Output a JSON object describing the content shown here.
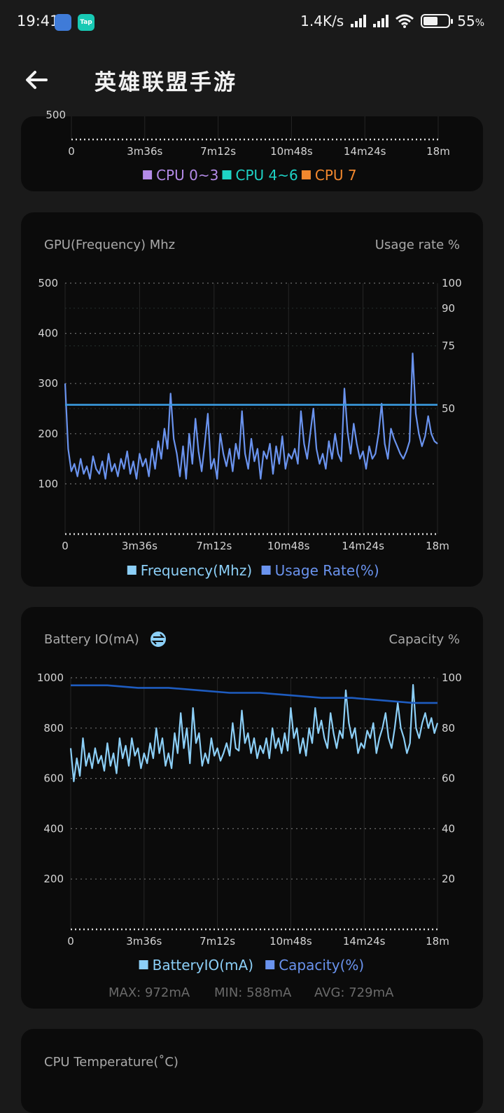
{
  "status_bar": {
    "time": "19:41",
    "net_speed": "1.4K/s",
    "battery_percent": "55",
    "battery_unit": "%",
    "battery_level": 0.55,
    "app_icon_2_label": "Tap"
  },
  "header": {
    "title": "英雄联盟手游",
    "back_icon": "arrow-left-icon"
  },
  "cpu_card": {
    "partial_tick": "500",
    "legend": [
      {
        "label": "CPU 0~3",
        "color": "#b48be8"
      },
      {
        "label": "CPU 4~6",
        "color": "#1ed3c6"
      },
      {
        "label": "CPU 7",
        "color": "#f2882e"
      }
    ]
  },
  "gpu_card": {
    "left_title": "GPU(Frequency) Mhz",
    "right_title": "Usage rate %",
    "legend": [
      {
        "label": "Frequency(Mhz)",
        "color": "#8ccff7"
      },
      {
        "label": "Usage Rate(%)",
        "color": "#6a93ee"
      }
    ]
  },
  "battery_card": {
    "left_title": "Battery IO(mA)",
    "title_icon": "swap-icon",
    "right_title": "Capacity %",
    "legend": [
      {
        "label": "BatteryIO(mA)",
        "color": "#8ccff7"
      },
      {
        "label": "Capacity(%)",
        "color": "#6a93ee"
      }
    ],
    "stats": {
      "max": "MAX: 972mA",
      "min": "MIN: 588mA",
      "avg": "AVG: 729mA"
    }
  },
  "temp_card": {
    "title": "CPU Temperature(˚C)"
  },
  "colors": {
    "card_bg": "#0b0b0b",
    "page_bg": "#1a1a1a",
    "freq_line": "#6a93ee",
    "usage_line": "#3a9be0",
    "battery_line": "#8ccff7",
    "capacity_line": "#1e5cc0"
  },
  "chart_data": [
    {
      "type": "line",
      "title": "GPU(Frequency) Mhz",
      "x_ticks": [
        "0",
        "3m36s",
        "7m12s",
        "10m48s",
        "14m24s",
        "18m"
      ],
      "y_left_ticks": [
        "500",
        "400",
        "300",
        "200",
        "100"
      ],
      "y_right_ticks": [
        "100",
        "90",
        "75",
        "50"
      ],
      "ylim_left": [
        0,
        500
      ],
      "ylim_right": [
        0,
        100
      ],
      "x_range_seconds": [
        0,
        1080
      ],
      "series": [
        {
          "name": "Frequency(Mhz)",
          "axis": "left",
          "x": [
            0,
            9,
            18,
            27,
            36,
            45,
            54,
            63,
            72,
            81,
            90,
            99,
            108,
            117,
            126,
            135,
            144,
            153,
            162,
            171,
            180,
            189,
            198,
            207,
            216,
            225,
            234,
            243,
            252,
            261,
            270,
            279,
            288,
            297,
            306,
            315,
            324,
            333,
            342,
            351,
            360,
            369,
            378,
            387,
            396,
            405,
            414,
            423,
            432,
            441,
            450,
            459,
            468,
            477,
            486,
            495,
            504,
            513,
            522,
            531,
            540,
            549,
            558,
            567,
            576,
            585,
            594,
            603,
            612,
            621,
            630,
            639,
            648,
            657,
            666,
            675,
            684,
            693,
            702,
            711,
            720,
            729,
            738,
            747,
            756,
            765,
            774,
            783,
            792,
            801,
            810,
            819,
            828,
            837,
            846,
            855,
            864,
            873,
            882,
            891,
            900,
            909,
            918,
            927,
            936,
            945,
            954,
            963,
            972,
            981,
            990,
            999,
            1008,
            1017,
            1026,
            1035,
            1044,
            1053,
            1062,
            1071,
            1080
          ],
          "values": [
            300,
            170,
            125,
            140,
            115,
            150,
            120,
            135,
            110,
            155,
            130,
            120,
            145,
            110,
            160,
            125,
            140,
            115,
            150,
            130,
            165,
            120,
            145,
            110,
            160,
            135,
            150,
            115,
            170,
            130,
            185,
            150,
            210,
            170,
            280,
            190,
            160,
            115,
            175,
            110,
            200,
            140,
            230,
            165,
            125,
            180,
            240,
            130,
            150,
            110,
            200,
            160,
            135,
            170,
            125,
            180,
            150,
            245,
            160,
            130,
            190,
            145,
            170,
            110,
            165,
            150,
            180,
            120,
            175,
            140,
            195,
            130,
            160,
            150,
            170,
            140,
            245,
            180,
            150,
            200,
            250,
            170,
            140,
            160,
            130,
            185,
            150,
            200,
            160,
            145,
            290,
            205,
            160,
            220,
            180,
            150,
            165,
            130,
            175,
            150,
            160,
            200,
            260,
            180,
            150,
            210,
            190,
            175,
            160,
            150,
            165,
            185,
            360,
            240,
            200,
            175,
            195,
            235,
            200,
            185,
            180
          ]
        },
        {
          "name": "Usage Rate(%)",
          "axis": "right",
          "x": [
            0,
            1080
          ],
          "values": [
            51.5,
            51.5
          ]
        }
      ]
    },
    {
      "type": "line",
      "title": "Battery IO(mA)",
      "x_ticks": [
        "0",
        "3m36s",
        "7m12s",
        "10m48s",
        "14m24s",
        "18m"
      ],
      "y_left_ticks": [
        "1000",
        "800",
        "600",
        "400",
        "200"
      ],
      "y_right_ticks": [
        "100",
        "80",
        "60",
        "40",
        "20"
      ],
      "ylim_left": [
        0,
        1000
      ],
      "ylim_right": [
        0,
        100
      ],
      "x_range_seconds": [
        0,
        1080
      ],
      "series": [
        {
          "name": "BatteryIO(mA)",
          "axis": "left",
          "x": [
            0,
            9,
            18,
            27,
            36,
            45,
            54,
            63,
            72,
            81,
            90,
            99,
            108,
            117,
            126,
            135,
            144,
            153,
            162,
            171,
            180,
            189,
            198,
            207,
            216,
            225,
            234,
            243,
            252,
            261,
            270,
            279,
            288,
            297,
            306,
            315,
            324,
            333,
            342,
            351,
            360,
            369,
            378,
            387,
            396,
            405,
            414,
            423,
            432,
            441,
            450,
            459,
            468,
            477,
            486,
            495,
            504,
            513,
            522,
            531,
            540,
            549,
            558,
            567,
            576,
            585,
            594,
            603,
            612,
            621,
            630,
            639,
            648,
            657,
            666,
            675,
            684,
            693,
            702,
            711,
            720,
            729,
            738,
            747,
            756,
            765,
            774,
            783,
            792,
            801,
            810,
            819,
            828,
            837,
            846,
            855,
            864,
            873,
            882,
            891,
            900,
            909,
            918,
            927,
            936,
            945,
            954,
            963,
            972,
            981,
            990,
            999,
            1008,
            1017,
            1026,
            1035,
            1044,
            1053,
            1062,
            1071,
            1080
          ],
          "values": [
            720,
            588,
            680,
            610,
            760,
            650,
            700,
            640,
            720,
            660,
            690,
            630,
            740,
            650,
            700,
            620,
            760,
            680,
            730,
            650,
            760,
            690,
            720,
            640,
            700,
            660,
            740,
            680,
            800,
            700,
            760,
            650,
            700,
            640,
            780,
            700,
            860,
            720,
            800,
            660,
            880,
            740,
            780,
            650,
            700,
            660,
            760,
            690,
            720,
            670,
            700,
            740,
            690,
            820,
            720,
            710,
            870,
            740,
            780,
            700,
            760,
            680,
            730,
            700,
            760,
            680,
            800,
            720,
            760,
            700,
            780,
            710,
            880,
            760,
            800,
            700,
            760,
            690,
            800,
            740,
            880,
            780,
            830,
            760,
            720,
            860,
            780,
            720,
            790,
            760,
            950,
            820,
            760,
            800,
            700,
            740,
            720,
            790,
            760,
            820,
            700,
            760,
            800,
            860,
            760,
            720,
            800,
            900,
            800,
            760,
            700,
            740,
            972,
            800,
            760,
            820,
            860,
            800,
            840,
            780,
            820
          ]
        },
        {
          "name": "Capacity(%)",
          "axis": "right",
          "x": [
            0,
            108,
            198,
            288,
            378,
            468,
            558,
            648,
            738,
            828,
            918,
            1008,
            1080
          ],
          "values": [
            97,
            97,
            96,
            96,
            95,
            94,
            94,
            93,
            92,
            92,
            91,
            90,
            90
          ]
        }
      ]
    }
  ]
}
